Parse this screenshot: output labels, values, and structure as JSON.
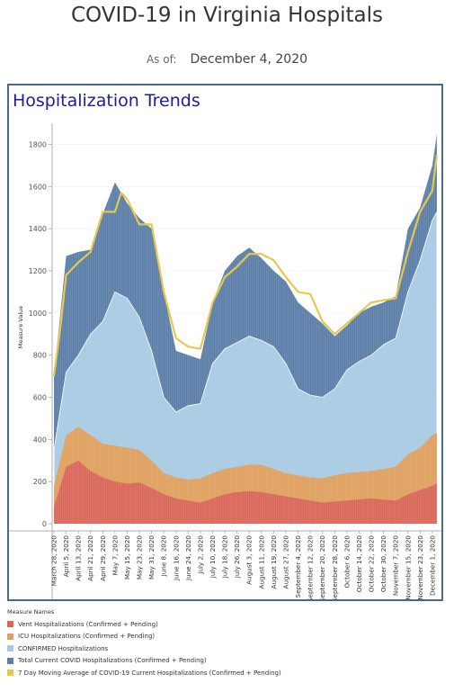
{
  "header": {
    "title": "COVID-19 in Virginia Hospitals",
    "as_of_label": "As of:",
    "as_of_date": "December 4, 2020"
  },
  "panel": {
    "title": "Hospitalization Trends"
  },
  "legend": {
    "title": "Measure Names",
    "items": [
      {
        "label": "Vent Hospitalizations (Confirmed + Pending)",
        "color": "#d9675a"
      },
      {
        "label": "ICU Hospitalizations (Confirmed + Pending)",
        "color": "#e0a060"
      },
      {
        "label": "CONFIRMED Hospitalizations",
        "color": "#a8cbe3"
      },
      {
        "label": "Total Current COVID Hospitalizations (Confirmed + Pending)",
        "color": "#5b7fa8"
      },
      {
        "label": "7 Day Moving Average of COVID-19 Current Hospitalizations (Confirmed + Pending)",
        "color": "#e8c84a"
      }
    ]
  },
  "chart_data": {
    "type": "area",
    "ylabel": "Measure Value",
    "ylim": [
      0,
      1900
    ],
    "yticks": [
      0,
      200,
      400,
      600,
      800,
      1000,
      1200,
      1400,
      1600,
      1800
    ],
    "x_start": "2020-03-28",
    "x_end": "2020-12-04",
    "xtick_labels": [
      "March 28, 2020",
      "April 5, 2020",
      "April 13, 2020",
      "April 21, 2020",
      "April 29, 2020",
      "May 7, 2020",
      "May 15, 2020",
      "May 23, 2020",
      "May 31, 2020",
      "June 8, 2020",
      "June 16, 2020",
      "June 24, 2020",
      "July 2, 2020",
      "July 10, 2020",
      "July 18, 2020",
      "July 26, 2020",
      "August 3, 2020",
      "August 11, 2020",
      "August 19, 2020",
      "August 27, 2020",
      "September 4, 2020",
      "September 12, 2020",
      "September 20, 2020",
      "September 28, 2020",
      "October 6, 2020",
      "October 14, 2020",
      "October 22, 2020",
      "October 30, 2020",
      "November 7, 2020",
      "November 15, 2020",
      "November 23, 2020",
      "December 1, 2020"
    ],
    "series": [
      {
        "name": "Total Current COVID Hospitalizations (Confirmed + Pending)",
        "x": [
          "2020-03-28",
          "2020-04-05",
          "2020-04-13",
          "2020-04-21",
          "2020-04-29",
          "2020-05-07",
          "2020-05-15",
          "2020-05-23",
          "2020-05-31",
          "2020-06-08",
          "2020-06-16",
          "2020-06-24",
          "2020-07-02",
          "2020-07-10",
          "2020-07-18",
          "2020-07-26",
          "2020-08-03",
          "2020-08-11",
          "2020-08-19",
          "2020-08-27",
          "2020-09-04",
          "2020-09-12",
          "2020-09-20",
          "2020-09-28",
          "2020-10-06",
          "2020-10-14",
          "2020-10-22",
          "2020-10-30",
          "2020-11-07",
          "2020-11-15",
          "2020-11-23",
          "2020-12-01",
          "2020-12-04"
        ],
        "values": [
          700,
          1270,
          1290,
          1300,
          1470,
          1620,
          1520,
          1450,
          1400,
          1100,
          820,
          800,
          780,
          1050,
          1200,
          1270,
          1310,
          1260,
          1200,
          1150,
          1050,
          1000,
          950,
          890,
          940,
          1000,
          1030,
          1050,
          1080,
          1400,
          1500,
          1700,
          1850
        ]
      },
      {
        "name": "CONFIRMED Hospitalizations",
        "x": [
          "2020-03-28",
          "2020-04-05",
          "2020-04-13",
          "2020-04-21",
          "2020-04-29",
          "2020-05-07",
          "2020-05-15",
          "2020-05-23",
          "2020-05-31",
          "2020-06-08",
          "2020-06-16",
          "2020-06-24",
          "2020-07-02",
          "2020-07-10",
          "2020-07-18",
          "2020-07-26",
          "2020-08-03",
          "2020-08-11",
          "2020-08-19",
          "2020-08-27",
          "2020-09-04",
          "2020-09-12",
          "2020-09-20",
          "2020-09-28",
          "2020-10-06",
          "2020-10-14",
          "2020-10-22",
          "2020-10-30",
          "2020-11-07",
          "2020-11-15",
          "2020-11-23",
          "2020-12-01",
          "2020-12-04"
        ],
        "values": [
          350,
          720,
          800,
          900,
          960,
          1100,
          1070,
          980,
          820,
          600,
          530,
          560,
          570,
          760,
          830,
          860,
          890,
          870,
          840,
          760,
          640,
          610,
          600,
          640,
          730,
          770,
          800,
          850,
          880,
          1100,
          1250,
          1440,
          1480
        ]
      },
      {
        "name": "ICU Hospitalizations (Confirmed + Pending)",
        "x": [
          "2020-03-28",
          "2020-04-05",
          "2020-04-13",
          "2020-04-21",
          "2020-04-29",
          "2020-05-07",
          "2020-05-15",
          "2020-05-23",
          "2020-05-31",
          "2020-06-08",
          "2020-06-16",
          "2020-06-24",
          "2020-07-02",
          "2020-07-10",
          "2020-07-18",
          "2020-07-26",
          "2020-08-03",
          "2020-08-11",
          "2020-08-19",
          "2020-08-27",
          "2020-09-04",
          "2020-09-12",
          "2020-09-20",
          "2020-09-28",
          "2020-10-06",
          "2020-10-14",
          "2020-10-22",
          "2020-10-30",
          "2020-11-07",
          "2020-11-15",
          "2020-11-23",
          "2020-12-01",
          "2020-12-04"
        ],
        "values": [
          180,
          420,
          460,
          420,
          380,
          370,
          360,
          350,
          300,
          240,
          220,
          210,
          215,
          240,
          260,
          270,
          280,
          280,
          260,
          240,
          230,
          220,
          215,
          230,
          240,
          245,
          250,
          260,
          270,
          330,
          360,
          420,
          430
        ]
      },
      {
        "name": "Vent Hospitalizations (Confirmed + Pending)",
        "x": [
          "2020-03-28",
          "2020-04-05",
          "2020-04-13",
          "2020-04-21",
          "2020-04-29",
          "2020-05-07",
          "2020-05-15",
          "2020-05-23",
          "2020-05-31",
          "2020-06-08",
          "2020-06-16",
          "2020-06-24",
          "2020-07-02",
          "2020-07-10",
          "2020-07-18",
          "2020-07-26",
          "2020-08-03",
          "2020-08-11",
          "2020-08-19",
          "2020-08-27",
          "2020-09-04",
          "2020-09-12",
          "2020-09-20",
          "2020-09-28",
          "2020-10-06",
          "2020-10-14",
          "2020-10-22",
          "2020-10-30",
          "2020-11-07",
          "2020-11-15",
          "2020-11-23",
          "2020-12-01",
          "2020-12-04"
        ],
        "values": [
          80,
          270,
          300,
          250,
          220,
          200,
          190,
          195,
          170,
          140,
          120,
          110,
          100,
          120,
          140,
          150,
          155,
          150,
          140,
          130,
          120,
          110,
          100,
          105,
          110,
          115,
          120,
          115,
          110,
          140,
          160,
          180,
          190
        ]
      },
      {
        "name": "7 Day Moving Average of COVID-19 Current Hospitalizations (Confirmed + Pending)",
        "x": [
          "2020-03-28",
          "2020-04-01",
          "2020-04-05",
          "2020-04-13",
          "2020-04-21",
          "2020-04-29",
          "2020-05-07",
          "2020-05-11",
          "2020-05-15",
          "2020-05-23",
          "2020-05-31",
          "2020-06-08",
          "2020-06-16",
          "2020-06-24",
          "2020-07-02",
          "2020-07-10",
          "2020-07-18",
          "2020-07-26",
          "2020-08-03",
          "2020-08-11",
          "2020-08-19",
          "2020-08-27",
          "2020-09-04",
          "2020-09-12",
          "2020-09-20",
          "2020-09-28",
          "2020-10-06",
          "2020-10-14",
          "2020-10-22",
          "2020-10-30",
          "2020-11-07",
          "2020-11-15",
          "2020-11-23",
          "2020-12-01",
          "2020-12-04"
        ],
        "values": [
          700,
          920,
          1180,
          1240,
          1290,
          1480,
          1480,
          1570,
          1540,
          1420,
          1420,
          1100,
          880,
          840,
          830,
          1050,
          1170,
          1220,
          1280,
          1280,
          1250,
          1170,
          1100,
          1090,
          960,
          900,
          950,
          1000,
          1050,
          1060,
          1070,
          1290,
          1480,
          1580,
          1750
        ]
      }
    ]
  }
}
